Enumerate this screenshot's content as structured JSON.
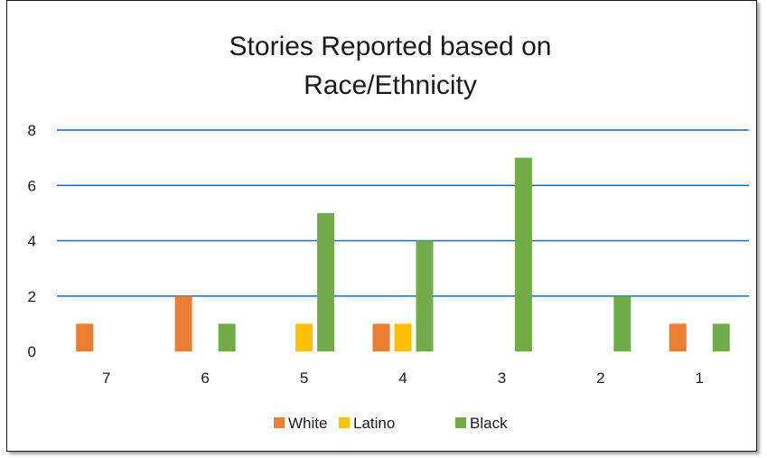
{
  "chart_data": {
    "type": "bar",
    "title_lines": [
      "Stories Reported based on",
      "Race/Ethnicity"
    ],
    "categories": [
      "7",
      "6",
      "5",
      "4",
      "3",
      "2",
      "1"
    ],
    "series": [
      {
        "name": "White",
        "color": "#ED7D31",
        "values": [
          1,
          2,
          0,
          1,
          0,
          0,
          1
        ]
      },
      {
        "name": "Latino",
        "color": "#FFC000",
        "values": [
          0,
          0,
          1,
          1,
          0,
          0,
          0
        ]
      },
      {
        "name": "Black",
        "color": "#70AD47",
        "values": [
          0,
          1,
          5,
          4,
          7,
          2,
          1
        ]
      }
    ],
    "ylim": [
      0,
      8
    ],
    "yticks": [
      0,
      2,
      4,
      6,
      8
    ],
    "grid": true,
    "gridline_color": "#0F6FC6",
    "legend_position": "bottom"
  }
}
